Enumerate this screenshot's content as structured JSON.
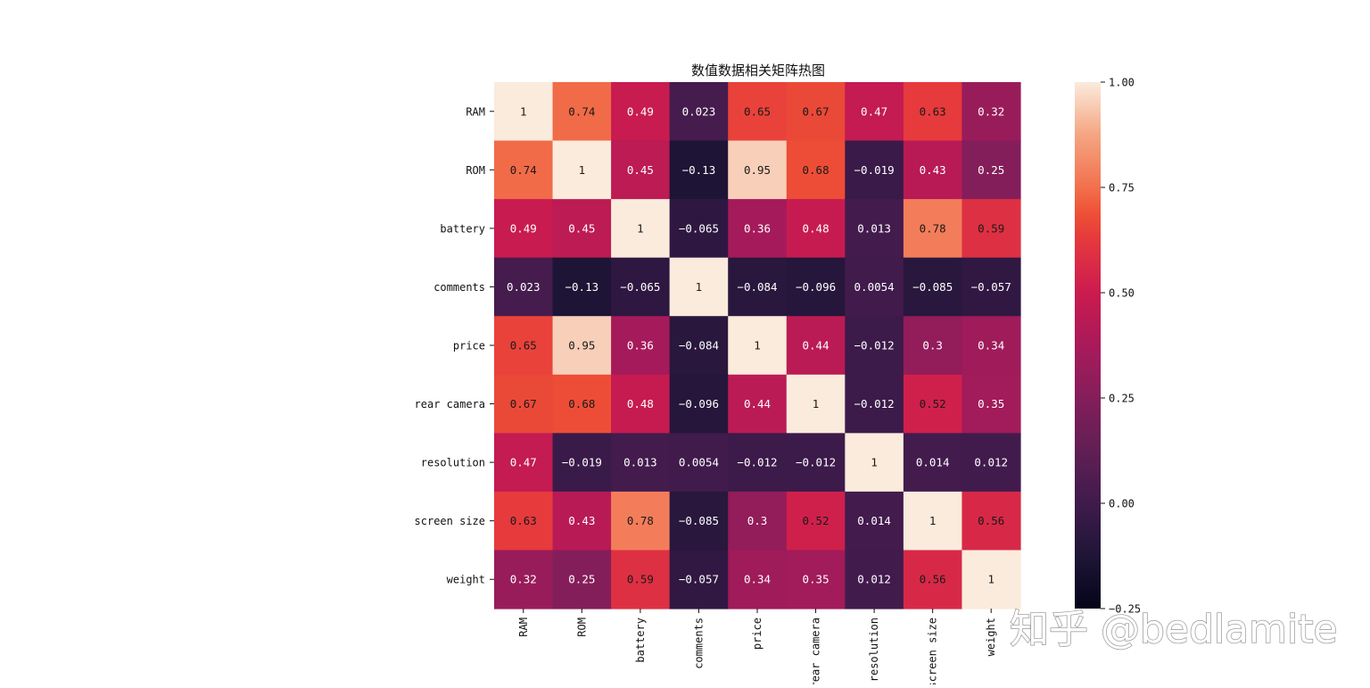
{
  "chart_data": {
    "type": "heatmap",
    "title": "数值数据相关矩阵热图",
    "rows": [
      "RAM",
      "ROM",
      "battery",
      "comments",
      "price",
      "rear camera",
      "resolution",
      "screen size",
      "weight"
    ],
    "columns": [
      "RAM",
      "ROM",
      "battery",
      "comments",
      "price",
      "rear camera",
      "resolution",
      "screen size",
      "weight"
    ],
    "values": [
      [
        1,
        0.74,
        0.49,
        0.023,
        0.65,
        0.67,
        0.47,
        0.63,
        0.32
      ],
      [
        0.74,
        1,
        0.45,
        -0.13,
        0.95,
        0.68,
        -0.019,
        0.43,
        0.25
      ],
      [
        0.49,
        0.45,
        1,
        -0.065,
        0.36,
        0.48,
        0.013,
        0.78,
        0.59
      ],
      [
        0.023,
        -0.13,
        -0.065,
        1,
        -0.084,
        -0.096,
        0.0054,
        -0.085,
        -0.057
      ],
      [
        0.65,
        0.95,
        0.36,
        -0.084,
        1,
        0.44,
        -0.012,
        0.3,
        0.34
      ],
      [
        0.67,
        0.68,
        0.48,
        -0.096,
        0.44,
        1,
        -0.012,
        0.52,
        0.35
      ],
      [
        0.47,
        -0.019,
        0.013,
        0.0054,
        -0.012,
        -0.012,
        1,
        0.014,
        0.012
      ],
      [
        0.63,
        0.43,
        0.78,
        -0.085,
        0.3,
        0.52,
        0.014,
        1,
        0.56
      ],
      [
        0.32,
        0.25,
        0.59,
        -0.057,
        0.34,
        0.35,
        0.012,
        0.56,
        1
      ]
    ],
    "labels": [
      [
        "1",
        "0.74",
        "0.49",
        "0.023",
        "0.65",
        "0.67",
        "0.47",
        "0.63",
        "0.32"
      ],
      [
        "0.74",
        "1",
        "0.45",
        "−0.13",
        "0.95",
        "0.68",
        "−0.019",
        "0.43",
        "0.25"
      ],
      [
        "0.49",
        "0.45",
        "1",
        "−0.065",
        "0.36",
        "0.48",
        "0.013",
        "0.78",
        "0.59"
      ],
      [
        "0.023",
        "−0.13",
        "−0.065",
        "1",
        "−0.084",
        "−0.096",
        "0.0054",
        "−0.085",
        "−0.057"
      ],
      [
        "0.65",
        "0.95",
        "0.36",
        "−0.084",
        "1",
        "0.44",
        "−0.012",
        "0.3",
        "0.34"
      ],
      [
        "0.67",
        "0.68",
        "0.48",
        "−0.096",
        "0.44",
        "1",
        "−0.012",
        "0.52",
        "0.35"
      ],
      [
        "0.47",
        "−0.019",
        "0.013",
        "0.0054",
        "−0.012",
        "−0.012",
        "1",
        "0.014",
        "0.012"
      ],
      [
        "0.63",
        "0.43",
        "0.78",
        "−0.085",
        "0.3",
        "0.52",
        "0.014",
        "1",
        "0.56"
      ],
      [
        "0.32",
        "0.25",
        "0.59",
        "−0.057",
        "0.34",
        "0.35",
        "0.012",
        "0.56",
        "1"
      ]
    ],
    "colorbar": {
      "vmin": -0.25,
      "vmax": 1.0,
      "ticks": [
        1.0,
        0.75,
        0.5,
        0.25,
        0.0,
        -0.25
      ],
      "tick_labels": [
        "1.00",
        "0.75",
        "0.50",
        "0.25",
        "0.00",
        "−0.25"
      ]
    },
    "colormap": "rocket",
    "colormap_stops": [
      [
        0.0,
        "#03051a"
      ],
      [
        0.1,
        "#1f1536"
      ],
      [
        0.2,
        "#3f1b4c"
      ],
      [
        0.3,
        "#611f53"
      ],
      [
        0.4,
        "#841e5a"
      ],
      [
        0.5,
        "#a91a5a"
      ],
      [
        0.6,
        "#cb1b4f"
      ],
      [
        0.7,
        "#e5383e"
      ],
      [
        0.75,
        "#ee5036"
      ],
      [
        0.8,
        "#f2704d"
      ],
      [
        0.9,
        "#f5a582"
      ],
      [
        1.0,
        "#faebdd"
      ]
    ]
  },
  "watermark": "知乎 @bedlamite"
}
